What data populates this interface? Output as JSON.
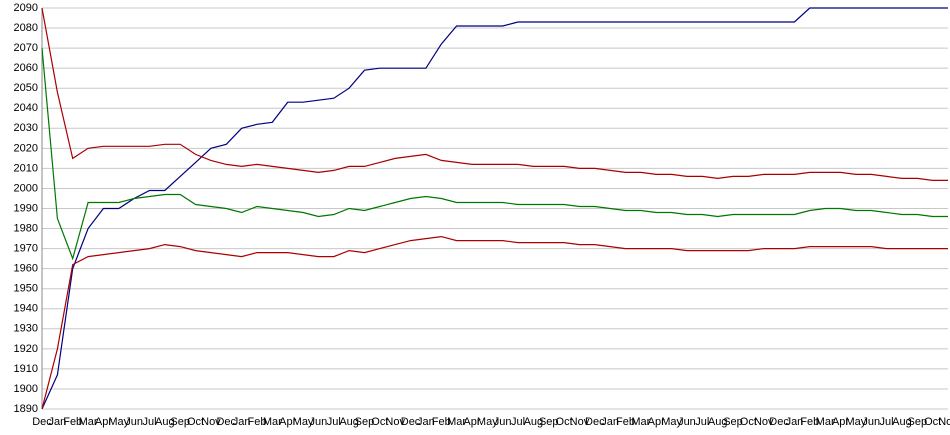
{
  "chart_data": {
    "type": "line",
    "categories": [
      "Dec",
      "Jan",
      "Feb",
      "Mar",
      "Apr",
      "May",
      "Jun",
      "Jul",
      "Aug",
      "Sep",
      "Oct",
      "Nov",
      "Dec",
      "Jan",
      "Feb",
      "Mar",
      "Apr",
      "May",
      "Jun",
      "Jul",
      "Aug",
      "Sep",
      "Oct",
      "Nov",
      "Dec",
      "Jan",
      "Feb",
      "Mar",
      "Apr",
      "May",
      "Jun",
      "Jul",
      "Aug",
      "Sep",
      "Oct",
      "Nov",
      "Dec",
      "Jan",
      "Feb",
      "Mar",
      "Apr",
      "May",
      "Jun",
      "Jul",
      "Aug",
      "Sep",
      "Oct",
      "Nov",
      "Dec",
      "Jan",
      "Feb",
      "Mar",
      "Apr",
      "May",
      "Jun",
      "Jul",
      "Aug",
      "Sep",
      "Oct",
      "Nov"
    ],
    "series": [
      {
        "color": "#000080",
        "values": [
          1890,
          1907,
          1960,
          1980,
          1990,
          1990,
          1995,
          1999,
          1999,
          2006,
          2013,
          2020,
          2022,
          2030,
          2032,
          2033,
          2043,
          2043,
          2044,
          2045,
          2050,
          2059,
          2060,
          2060,
          2060,
          2060,
          2072,
          2081,
          2081,
          2081,
          2081,
          2083,
          2083,
          2083,
          2083,
          2083,
          2083,
          2083,
          2083,
          2083,
          2083,
          2083,
          2083,
          2083,
          2083,
          2083,
          2083,
          2083,
          2083,
          2083,
          2090,
          2090,
          2090,
          2090,
          2090,
          2090,
          2090,
          2090,
          2090,
          2090
        ]
      },
      {
        "color": "#aa0000",
        "values": [
          2090,
          2048,
          2015,
          2020,
          2021,
          2021,
          2021,
          2021,
          2022,
          2022,
          2017,
          2014,
          2012,
          2011,
          2012,
          2011,
          2010,
          2009,
          2008,
          2009,
          2011,
          2011,
          2013,
          2015,
          2016,
          2017,
          2014,
          2013,
          2012,
          2012,
          2012,
          2012,
          2011,
          2011,
          2011,
          2010,
          2010,
          2009,
          2008,
          2008,
          2007,
          2007,
          2006,
          2006,
          2005,
          2006,
          2006,
          2007,
          2007,
          2007,
          2008,
          2008,
          2008,
          2007,
          2007,
          2006,
          2005,
          2005,
          2004,
          2004
        ]
      },
      {
        "color": "#007700",
        "values": [
          2070,
          1985,
          1965,
          1993,
          1993,
          1993,
          1995,
          1996,
          1997,
          1997,
          1992,
          1991,
          1990,
          1988,
          1991,
          1990,
          1989,
          1988,
          1986,
          1987,
          1990,
          1989,
          1991,
          1993,
          1995,
          1996,
          1995,
          1993,
          1993,
          1993,
          1993,
          1992,
          1992,
          1992,
          1992,
          1991,
          1991,
          1990,
          1989,
          1989,
          1988,
          1988,
          1987,
          1987,
          1986,
          1987,
          1987,
          1987,
          1987,
          1987,
          1989,
          1990,
          1990,
          1989,
          1989,
          1988,
          1987,
          1987,
          1986,
          1986
        ]
      },
      {
        "color": "#aa0000",
        "values": [
          1890,
          1920,
          1962,
          1966,
          1967,
          1968,
          1969,
          1970,
          1972,
          1971,
          1969,
          1968,
          1967,
          1966,
          1968,
          1968,
          1968,
          1967,
          1966,
          1966,
          1969,
          1968,
          1970,
          1972,
          1974,
          1975,
          1976,
          1974,
          1974,
          1974,
          1974,
          1973,
          1973,
          1973,
          1973,
          1972,
          1972,
          1971,
          1970,
          1970,
          1970,
          1970,
          1969,
          1969,
          1969,
          1969,
          1969,
          1970,
          1970,
          1970,
          1971,
          1971,
          1971,
          1971,
          1971,
          1970,
          1970,
          1970,
          1970,
          1970
        ]
      }
    ],
    "ylim": [
      1890,
      2090
    ],
    "yticks": [
      1890,
      1900,
      1910,
      1920,
      1930,
      1940,
      1950,
      1960,
      1970,
      1980,
      1990,
      2000,
      2010,
      2020,
      2030,
      2040,
      2050,
      2060,
      2070,
      2080,
      2090
    ],
    "grid": true
  }
}
